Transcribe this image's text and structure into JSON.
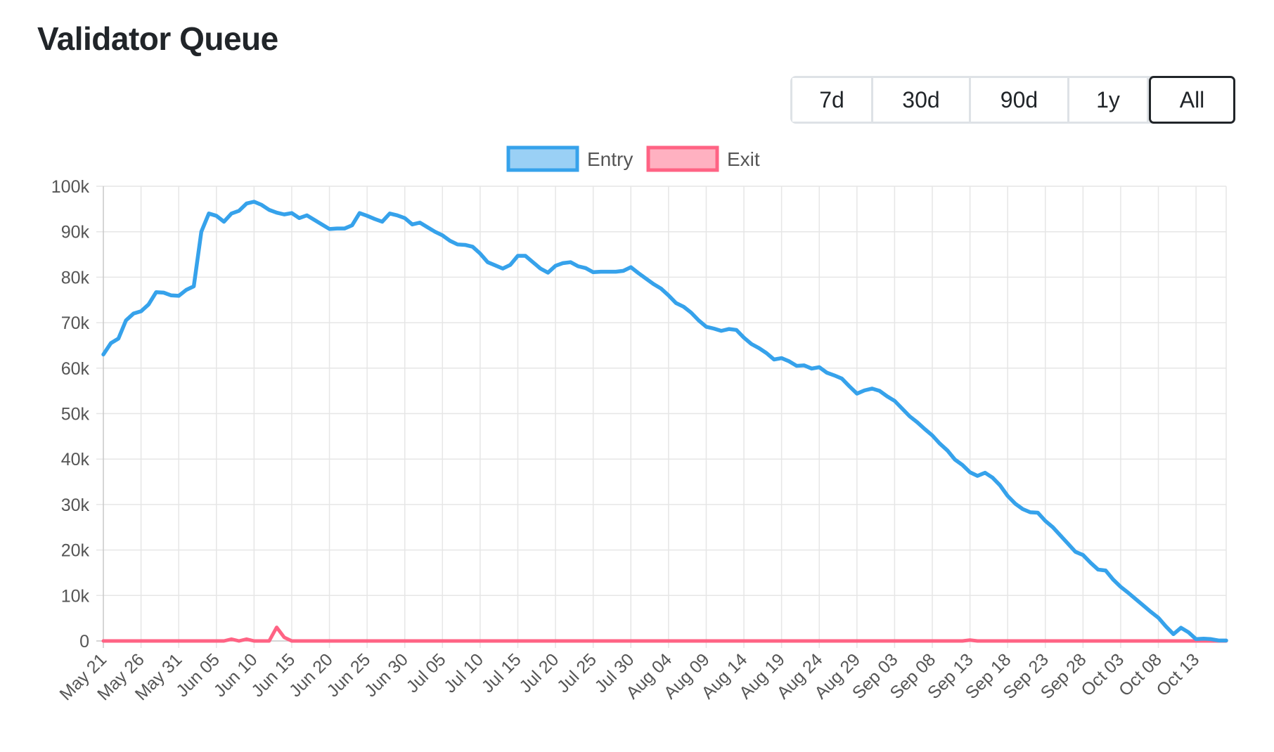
{
  "page": {
    "title": "Validator Queue"
  },
  "range_selector": {
    "options": [
      "7d",
      "30d",
      "90d",
      "1y",
      "All"
    ],
    "active": "All"
  },
  "chart_data": {
    "type": "line",
    "title": "",
    "xlabel": "",
    "ylabel": "",
    "x_start": "2023-05-21",
    "x_end": "2023-10-17",
    "x_tick_labels": [
      "May 21",
      "May 26",
      "May 31",
      "Jun 05",
      "Jun 10",
      "Jun 15",
      "Jun 20",
      "Jun 25",
      "Jun 30",
      "Jul 05",
      "Jul 10",
      "Jul 15",
      "Jul 20",
      "Jul 25",
      "Jul 30",
      "Aug 04",
      "Aug 09",
      "Aug 14",
      "Aug 19",
      "Aug 24",
      "Aug 29",
      "Sep 03",
      "Sep 08",
      "Sep 13",
      "Sep 18",
      "Sep 23",
      "Sep 28",
      "Oct 03",
      "Oct 08",
      "Oct 13"
    ],
    "y_tick_labels": [
      "0",
      "10k",
      "20k",
      "30k",
      "40k",
      "50k",
      "60k",
      "70k",
      "80k",
      "90k",
      "100k"
    ],
    "ylim": [
      0,
      100000
    ],
    "grid": true,
    "legend_position": "top-center",
    "series": [
      {
        "name": "Entry",
        "color": "#36a2eb",
        "fill": "rgba(54,162,235,0.5)",
        "x": [
          "2023-05-21",
          "2023-05-22",
          "2023-05-23",
          "2023-05-24",
          "2023-05-25",
          "2023-05-26",
          "2023-05-27",
          "2023-05-28",
          "2023-05-29",
          "2023-05-30",
          "2023-05-31",
          "2023-06-01",
          "2023-06-02",
          "2023-06-03",
          "2023-06-04",
          "2023-06-05",
          "2023-06-06",
          "2023-06-07",
          "2023-06-08",
          "2023-06-09",
          "2023-06-10",
          "2023-06-11",
          "2023-06-12",
          "2023-06-13",
          "2023-06-14",
          "2023-06-15",
          "2023-06-16",
          "2023-06-17",
          "2023-06-18",
          "2023-06-19",
          "2023-06-20",
          "2023-06-21",
          "2023-06-22",
          "2023-06-23",
          "2023-06-24",
          "2023-06-25",
          "2023-06-26",
          "2023-06-27",
          "2023-06-28",
          "2023-06-29",
          "2023-06-30",
          "2023-07-01",
          "2023-07-02",
          "2023-07-03",
          "2023-07-04",
          "2023-07-05",
          "2023-07-06",
          "2023-07-07",
          "2023-07-08",
          "2023-07-09",
          "2023-07-10",
          "2023-07-11",
          "2023-07-12",
          "2023-07-13",
          "2023-07-14",
          "2023-07-15",
          "2023-07-16",
          "2023-07-17",
          "2023-07-18",
          "2023-07-19",
          "2023-07-20",
          "2023-07-21",
          "2023-07-22",
          "2023-07-23",
          "2023-07-24",
          "2023-07-25",
          "2023-07-26",
          "2023-07-27",
          "2023-07-28",
          "2023-07-29",
          "2023-07-30",
          "2023-07-31",
          "2023-08-01",
          "2023-08-02",
          "2023-08-03",
          "2023-08-04",
          "2023-08-05",
          "2023-08-06",
          "2023-08-07",
          "2023-08-08",
          "2023-08-09",
          "2023-08-10",
          "2023-08-11",
          "2023-08-12",
          "2023-08-13",
          "2023-08-14",
          "2023-08-15",
          "2023-08-16",
          "2023-08-17",
          "2023-08-18",
          "2023-08-19",
          "2023-08-20",
          "2023-08-21",
          "2023-08-22",
          "2023-08-23",
          "2023-08-24",
          "2023-08-25",
          "2023-08-26",
          "2023-08-27",
          "2023-08-28",
          "2023-08-29",
          "2023-08-30",
          "2023-08-31",
          "2023-09-01",
          "2023-09-02",
          "2023-09-03",
          "2023-09-04",
          "2023-09-05",
          "2023-09-06",
          "2023-09-07",
          "2023-09-08",
          "2023-09-09",
          "2023-09-10",
          "2023-09-11",
          "2023-09-12",
          "2023-09-13",
          "2023-09-14",
          "2023-09-15",
          "2023-09-16",
          "2023-09-17",
          "2023-09-18",
          "2023-09-19",
          "2023-09-20",
          "2023-09-21",
          "2023-09-22",
          "2023-09-23",
          "2023-09-24",
          "2023-09-25",
          "2023-09-26",
          "2023-09-27",
          "2023-09-28",
          "2023-09-29",
          "2023-09-30",
          "2023-10-01",
          "2023-10-02",
          "2023-10-03",
          "2023-10-04",
          "2023-10-05",
          "2023-10-06",
          "2023-10-07",
          "2023-10-08",
          "2023-10-09",
          "2023-10-10",
          "2023-10-11",
          "2023-10-12",
          "2023-10-13",
          "2023-10-14",
          "2023-10-15",
          "2023-10-16",
          "2023-10-17"
        ],
        "values": [
          63000,
          65500,
          66500,
          70500,
          72000,
          72500,
          74000,
          76700,
          76600,
          76000,
          75900,
          77200,
          78000,
          90000,
          94000,
          93500,
          92200,
          94000,
          94600,
          96200,
          96600,
          95900,
          94800,
          94200,
          93800,
          94100,
          93000,
          93600,
          92600,
          91600,
          90600,
          90700,
          90700,
          91400,
          94100,
          93500,
          92800,
          92200,
          94000,
          93600,
          93000,
          91600,
          92000,
          91000,
          90000,
          89200,
          88000,
          87200,
          87100,
          86700,
          85200,
          83300,
          82600,
          81900,
          82700,
          84700,
          84700,
          83300,
          81900,
          81000,
          82500,
          83100,
          83300,
          82400,
          82000,
          81100,
          81200,
          81200,
          81200,
          81400,
          82200,
          80900,
          79700,
          78500,
          77500,
          76000,
          74300,
          73500,
          72200,
          70500,
          69100,
          68700,
          68200,
          68600,
          68400,
          66700,
          65300,
          64400,
          63300,
          61900,
          62200,
          61500,
          60500,
          60600,
          59900,
          60200,
          59000,
          58400,
          57700,
          56000,
          54400,
          55100,
          55500,
          55000,
          53800,
          52800,
          51100,
          49400,
          48100,
          46600,
          45200,
          43400,
          41900,
          39900,
          38700,
          37100,
          36300,
          37000,
          35900,
          34200,
          31900,
          30200,
          29000,
          28300,
          28200,
          26400,
          25000,
          23200,
          21400,
          19600,
          18900,
          17200,
          15700,
          15500,
          13500,
          11900,
          10600,
          9200,
          7800,
          6400,
          5100,
          3200,
          1500,
          2900,
          1900,
          400,
          500,
          400,
          100,
          100
        ],
        "connect_to_edge": true
      },
      {
        "name": "Exit",
        "color": "#ff6384",
        "fill": "rgba(255,99,132,0.5)",
        "spikes": [
          {
            "date": "2023-06-07",
            "value": 400
          },
          {
            "date": "2023-06-09",
            "value": 400
          },
          {
            "date": "2023-06-13",
            "value": 3000
          },
          {
            "date": "2023-06-14",
            "value": 800
          },
          {
            "date": "2023-09-13",
            "value": 200
          }
        ],
        "baseline": 0
      }
    ]
  }
}
